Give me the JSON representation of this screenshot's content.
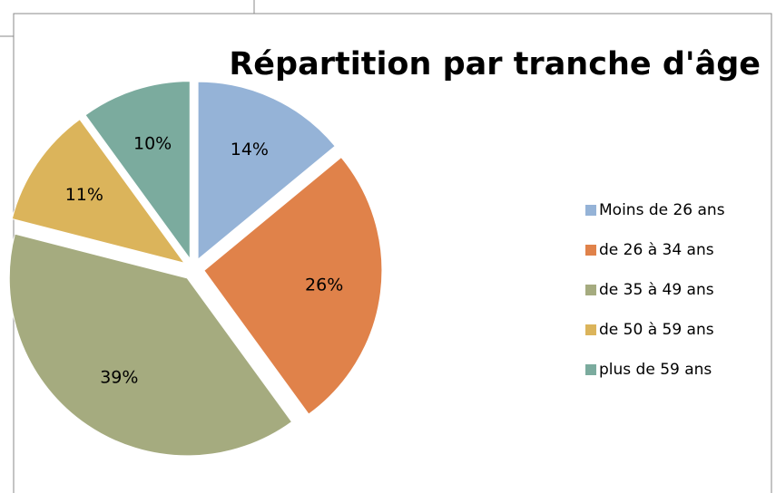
{
  "chart_data": {
    "type": "pie",
    "title": "Répartition par tranche d'âge",
    "categories": [
      "Moins de 26 ans",
      "de 26 à 34 ans",
      "de 35 à 49 ans",
      "de 50 à 59 ans",
      "plus de 59 ans"
    ],
    "values": [
      14,
      26,
      39,
      11,
      10
    ],
    "value_labels": [
      "14%",
      "26%",
      "39%",
      "11%",
      "10%"
    ],
    "colors": [
      "#95b3d7",
      "#e0824a",
      "#a5ab7f",
      "#dbb45b",
      "#7bab9e"
    ],
    "legend": "right"
  }
}
